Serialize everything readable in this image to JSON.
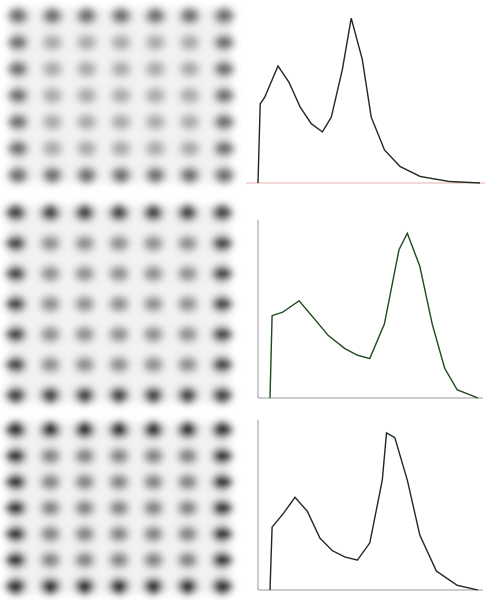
{
  "chart_data": [
    {
      "type": "line",
      "color": "#1e2a1e",
      "x": [
        0,
        1,
        3,
        9,
        14,
        19,
        24,
        29,
        33,
        38,
        42,
        47,
        51,
        57,
        64,
        73,
        86,
        100
      ],
      "values": [
        0,
        48,
        52,
        71,
        61,
        46,
        36,
        31,
        40,
        69,
        100,
        75,
        40,
        20,
        10,
        4,
        1,
        0
      ],
      "xlim": [
        0,
        100
      ],
      "ylim": [
        0,
        105
      ]
    },
    {
      "type": "line",
      "color": "#1f4a1f",
      "x": [
        0,
        1,
        6,
        14,
        20,
        28,
        36,
        42,
        48,
        55,
        62,
        66,
        72,
        78,
        84,
        90,
        100
      ],
      "values": [
        0,
        50,
        52,
        59,
        50,
        38,
        30,
        26,
        24,
        45,
        90,
        100,
        80,
        45,
        18,
        5,
        0
      ],
      "xlim": [
        0,
        100
      ],
      "ylim": [
        0,
        105
      ]
    },
    {
      "type": "line",
      "color": "#1e2a1e",
      "x": [
        0,
        1,
        6,
        12,
        18,
        24,
        30,
        36,
        42,
        48,
        54,
        56,
        60,
        66,
        72,
        80,
        90,
        100
      ],
      "values": [
        0,
        40,
        48,
        59,
        50,
        33,
        25,
        21,
        19,
        30,
        70,
        100,
        97,
        70,
        35,
        12,
        3,
        0
      ],
      "xlim": [
        0,
        100
      ],
      "ylim": [
        0,
        105
      ]
    }
  ]
}
